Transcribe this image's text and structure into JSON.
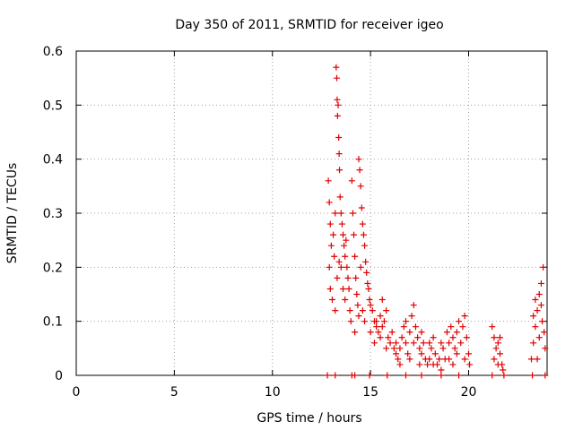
{
  "chart_data": {
    "type": "scatter",
    "title": "Day 350 of 2011, SRMTID for receiver igeo",
    "xlabel": "GPS time / hours",
    "ylabel": "SRMTID / TECUs",
    "xlim": [
      0,
      24
    ],
    "ylim": [
      0,
      0.6
    ],
    "xticks": [
      0,
      5,
      10,
      15,
      20
    ],
    "xtick_labels": [
      "0",
      "5",
      "10",
      "15",
      "20"
    ],
    "yticks": [
      0,
      0.1,
      0.2,
      0.3,
      0.4,
      0.5,
      0.6
    ],
    "ytick_labels": [
      "0",
      "0.1",
      "0.2",
      "0.3",
      "0.4",
      "0.5",
      "0.6"
    ],
    "grid": true,
    "marker": "+",
    "color": "#e00000",
    "series": [
      {
        "name": "SRMTID",
        "points": [
          [
            12.8,
            0.0
          ],
          [
            13.2,
            0.0
          ],
          [
            14.05,
            0.0
          ],
          [
            14.2,
            0.0
          ],
          [
            14.95,
            0.0
          ],
          [
            15.85,
            0.0
          ],
          [
            16.8,
            0.0
          ],
          [
            17.6,
            0.0
          ],
          [
            18.6,
            0.0
          ],
          [
            19.5,
            0.0
          ],
          [
            21.2,
            0.0
          ],
          [
            21.8,
            0.0
          ],
          [
            23.25,
            0.0
          ],
          [
            23.9,
            0.0
          ],
          [
            12.85,
            0.36
          ],
          [
            12.9,
            0.32
          ],
          [
            12.95,
            0.28
          ],
          [
            13.0,
            0.24
          ],
          [
            12.9,
            0.2
          ],
          [
            12.95,
            0.16
          ],
          [
            13.05,
            0.14
          ],
          [
            13.1,
            0.26
          ],
          [
            13.15,
            0.22
          ],
          [
            13.2,
            0.3
          ],
          [
            13.25,
            0.57
          ],
          [
            13.28,
            0.55
          ],
          [
            13.3,
            0.51
          ],
          [
            13.32,
            0.48
          ],
          [
            13.35,
            0.5
          ],
          [
            13.38,
            0.44
          ],
          [
            13.4,
            0.41
          ],
          [
            13.42,
            0.38
          ],
          [
            13.45,
            0.33
          ],
          [
            13.5,
            0.3
          ],
          [
            13.55,
            0.28
          ],
          [
            13.6,
            0.26
          ],
          [
            13.65,
            0.24
          ],
          [
            13.7,
            0.22
          ],
          [
            13.75,
            0.25
          ],
          [
            13.8,
            0.2
          ],
          [
            13.85,
            0.18
          ],
          [
            13.9,
            0.16
          ],
          [
            13.95,
            0.12
          ],
          [
            14.0,
            0.1
          ],
          [
            13.5,
            0.2
          ],
          [
            13.6,
            0.16
          ],
          [
            13.7,
            0.14
          ],
          [
            13.2,
            0.12
          ],
          [
            13.3,
            0.18
          ],
          [
            13.4,
            0.21
          ],
          [
            14.05,
            0.36
          ],
          [
            14.1,
            0.3
          ],
          [
            14.15,
            0.26
          ],
          [
            14.2,
            0.22
          ],
          [
            14.25,
            0.18
          ],
          [
            14.3,
            0.15
          ],
          [
            14.35,
            0.13
          ],
          [
            14.4,
            0.4
          ],
          [
            14.45,
            0.38
          ],
          [
            14.5,
            0.35
          ],
          [
            14.55,
            0.31
          ],
          [
            14.6,
            0.28
          ],
          [
            14.65,
            0.26
          ],
          [
            14.7,
            0.24
          ],
          [
            14.75,
            0.21
          ],
          [
            14.8,
            0.19
          ],
          [
            14.85,
            0.17
          ],
          [
            14.9,
            0.16
          ],
          [
            14.95,
            0.14
          ],
          [
            14.5,
            0.2
          ],
          [
            14.6,
            0.12
          ],
          [
            14.7,
            0.1
          ],
          [
            14.2,
            0.08
          ],
          [
            14.4,
            0.11
          ],
          [
            15.0,
            0.13
          ],
          [
            15.1,
            0.12
          ],
          [
            15.2,
            0.1
          ],
          [
            15.3,
            0.09
          ],
          [
            15.4,
            0.08
          ],
          [
            15.5,
            0.11
          ],
          [
            15.6,
            0.14
          ],
          [
            15.7,
            0.1
          ],
          [
            15.8,
            0.12
          ],
          [
            15.9,
            0.07
          ],
          [
            16.0,
            0.06
          ],
          [
            16.1,
            0.08
          ],
          [
            15.2,
            0.06
          ],
          [
            15.5,
            0.07
          ],
          [
            15.8,
            0.05
          ],
          [
            15.0,
            0.08
          ],
          [
            15.3,
            0.1
          ],
          [
            15.6,
            0.09
          ],
          [
            16.2,
            0.05
          ],
          [
            16.3,
            0.04
          ],
          [
            16.4,
            0.03
          ],
          [
            16.5,
            0.05
          ],
          [
            16.6,
            0.07
          ],
          [
            16.7,
            0.09
          ],
          [
            16.8,
            0.06
          ],
          [
            16.9,
            0.04
          ],
          [
            17.0,
            0.08
          ],
          [
            17.1,
            0.11
          ],
          [
            17.2,
            0.13
          ],
          [
            17.3,
            0.09
          ],
          [
            17.4,
            0.07
          ],
          [
            17.5,
            0.05
          ],
          [
            17.6,
            0.04
          ],
          [
            17.7,
            0.06
          ],
          [
            17.8,
            0.03
          ],
          [
            16.5,
            0.02
          ],
          [
            17.0,
            0.03
          ],
          [
            17.5,
            0.02
          ],
          [
            16.3,
            0.06
          ],
          [
            16.8,
            0.1
          ],
          [
            17.2,
            0.06
          ],
          [
            17.6,
            0.08
          ],
          [
            17.9,
            0.02
          ],
          [
            18.0,
            0.03
          ],
          [
            18.1,
            0.05
          ],
          [
            18.2,
            0.07
          ],
          [
            18.3,
            0.04
          ],
          [
            18.4,
            0.02
          ],
          [
            18.5,
            0.03
          ],
          [
            18.6,
            0.06
          ],
          [
            18.7,
            0.05
          ],
          [
            18.8,
            0.03
          ],
          [
            18.9,
            0.08
          ],
          [
            19.0,
            0.06
          ],
          [
            19.1,
            0.09
          ],
          [
            19.2,
            0.07
          ],
          [
            19.3,
            0.05
          ],
          [
            19.4,
            0.08
          ],
          [
            19.5,
            0.1
          ],
          [
            19.6,
            0.06
          ],
          [
            19.7,
            0.09
          ],
          [
            19.8,
            0.11
          ],
          [
            19.9,
            0.07
          ],
          [
            20.0,
            0.04
          ],
          [
            20.05,
            0.02
          ],
          [
            18.2,
            0.02
          ],
          [
            18.6,
            0.01
          ],
          [
            19.0,
            0.03
          ],
          [
            19.4,
            0.04
          ],
          [
            19.8,
            0.03
          ],
          [
            18.0,
            0.06
          ],
          [
            19.2,
            0.02
          ],
          [
            21.2,
            0.09
          ],
          [
            21.3,
            0.07
          ],
          [
            21.4,
            0.05
          ],
          [
            21.5,
            0.06
          ],
          [
            21.6,
            0.04
          ],
          [
            21.7,
            0.02
          ],
          [
            21.75,
            0.01
          ],
          [
            21.3,
            0.03
          ],
          [
            21.5,
            0.02
          ],
          [
            21.6,
            0.07
          ],
          [
            23.2,
            0.03
          ],
          [
            23.3,
            0.06
          ],
          [
            23.4,
            0.09
          ],
          [
            23.5,
            0.12
          ],
          [
            23.6,
            0.15
          ],
          [
            23.7,
            0.13
          ],
          [
            23.75,
            0.1
          ],
          [
            23.8,
            0.2
          ],
          [
            23.85,
            0.08
          ],
          [
            23.9,
            0.05
          ],
          [
            23.4,
            0.14
          ],
          [
            23.6,
            0.07
          ],
          [
            23.5,
            0.03
          ],
          [
            23.7,
            0.17
          ],
          [
            23.3,
            0.11
          ]
        ]
      }
    ]
  }
}
